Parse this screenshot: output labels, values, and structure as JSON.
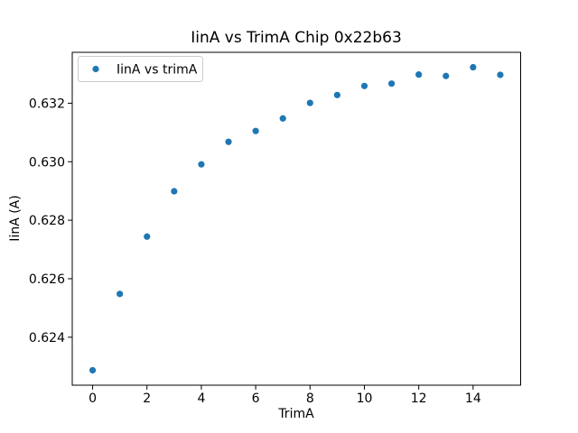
{
  "figure": {
    "background": "#ffffff"
  },
  "colors": {
    "marker": "#1f77b4",
    "axis": "#000000",
    "legend_border": "#cccccc",
    "legend_fill": "#ffffff",
    "text": "#000000"
  },
  "chart_data": {
    "type": "scatter",
    "title": "IinA vs TrimA Chip 0x22b63",
    "xlabel": "TrimA",
    "ylabel": "IinA (A)",
    "grid": false,
    "legend": {
      "position": "upper-left",
      "entries": [
        {
          "label": "IinA vs trimA",
          "marker": "dot",
          "color": "#1f77b4"
        }
      ]
    },
    "series": [
      {
        "name": "IinA vs trimA",
        "color": "#1f77b4",
        "x": [
          0,
          1,
          2,
          3,
          4,
          5,
          6,
          7,
          8,
          9,
          10,
          11,
          12,
          13,
          14,
          15
        ],
        "y": [
          0.62287,
          0.62548,
          0.62744,
          0.62899,
          0.62991,
          0.63068,
          0.63105,
          0.63148,
          0.63201,
          0.63228,
          0.63259,
          0.63267,
          0.63298,
          0.63293,
          0.63323,
          0.63297
        ]
      }
    ],
    "xlim": [
      -0.75,
      15.75
    ],
    "ylim": [
      0.62236,
      0.63374
    ],
    "xticks": [
      0,
      2,
      4,
      6,
      8,
      10,
      12,
      14
    ],
    "xtick_labels": [
      "0",
      "2",
      "4",
      "6",
      "8",
      "10",
      "12",
      "14"
    ],
    "yticks": [
      0.624,
      0.626,
      0.628,
      0.63,
      0.632
    ],
    "ytick_labels": [
      "0.624",
      "0.626",
      "0.628",
      "0.630",
      "0.632"
    ]
  }
}
